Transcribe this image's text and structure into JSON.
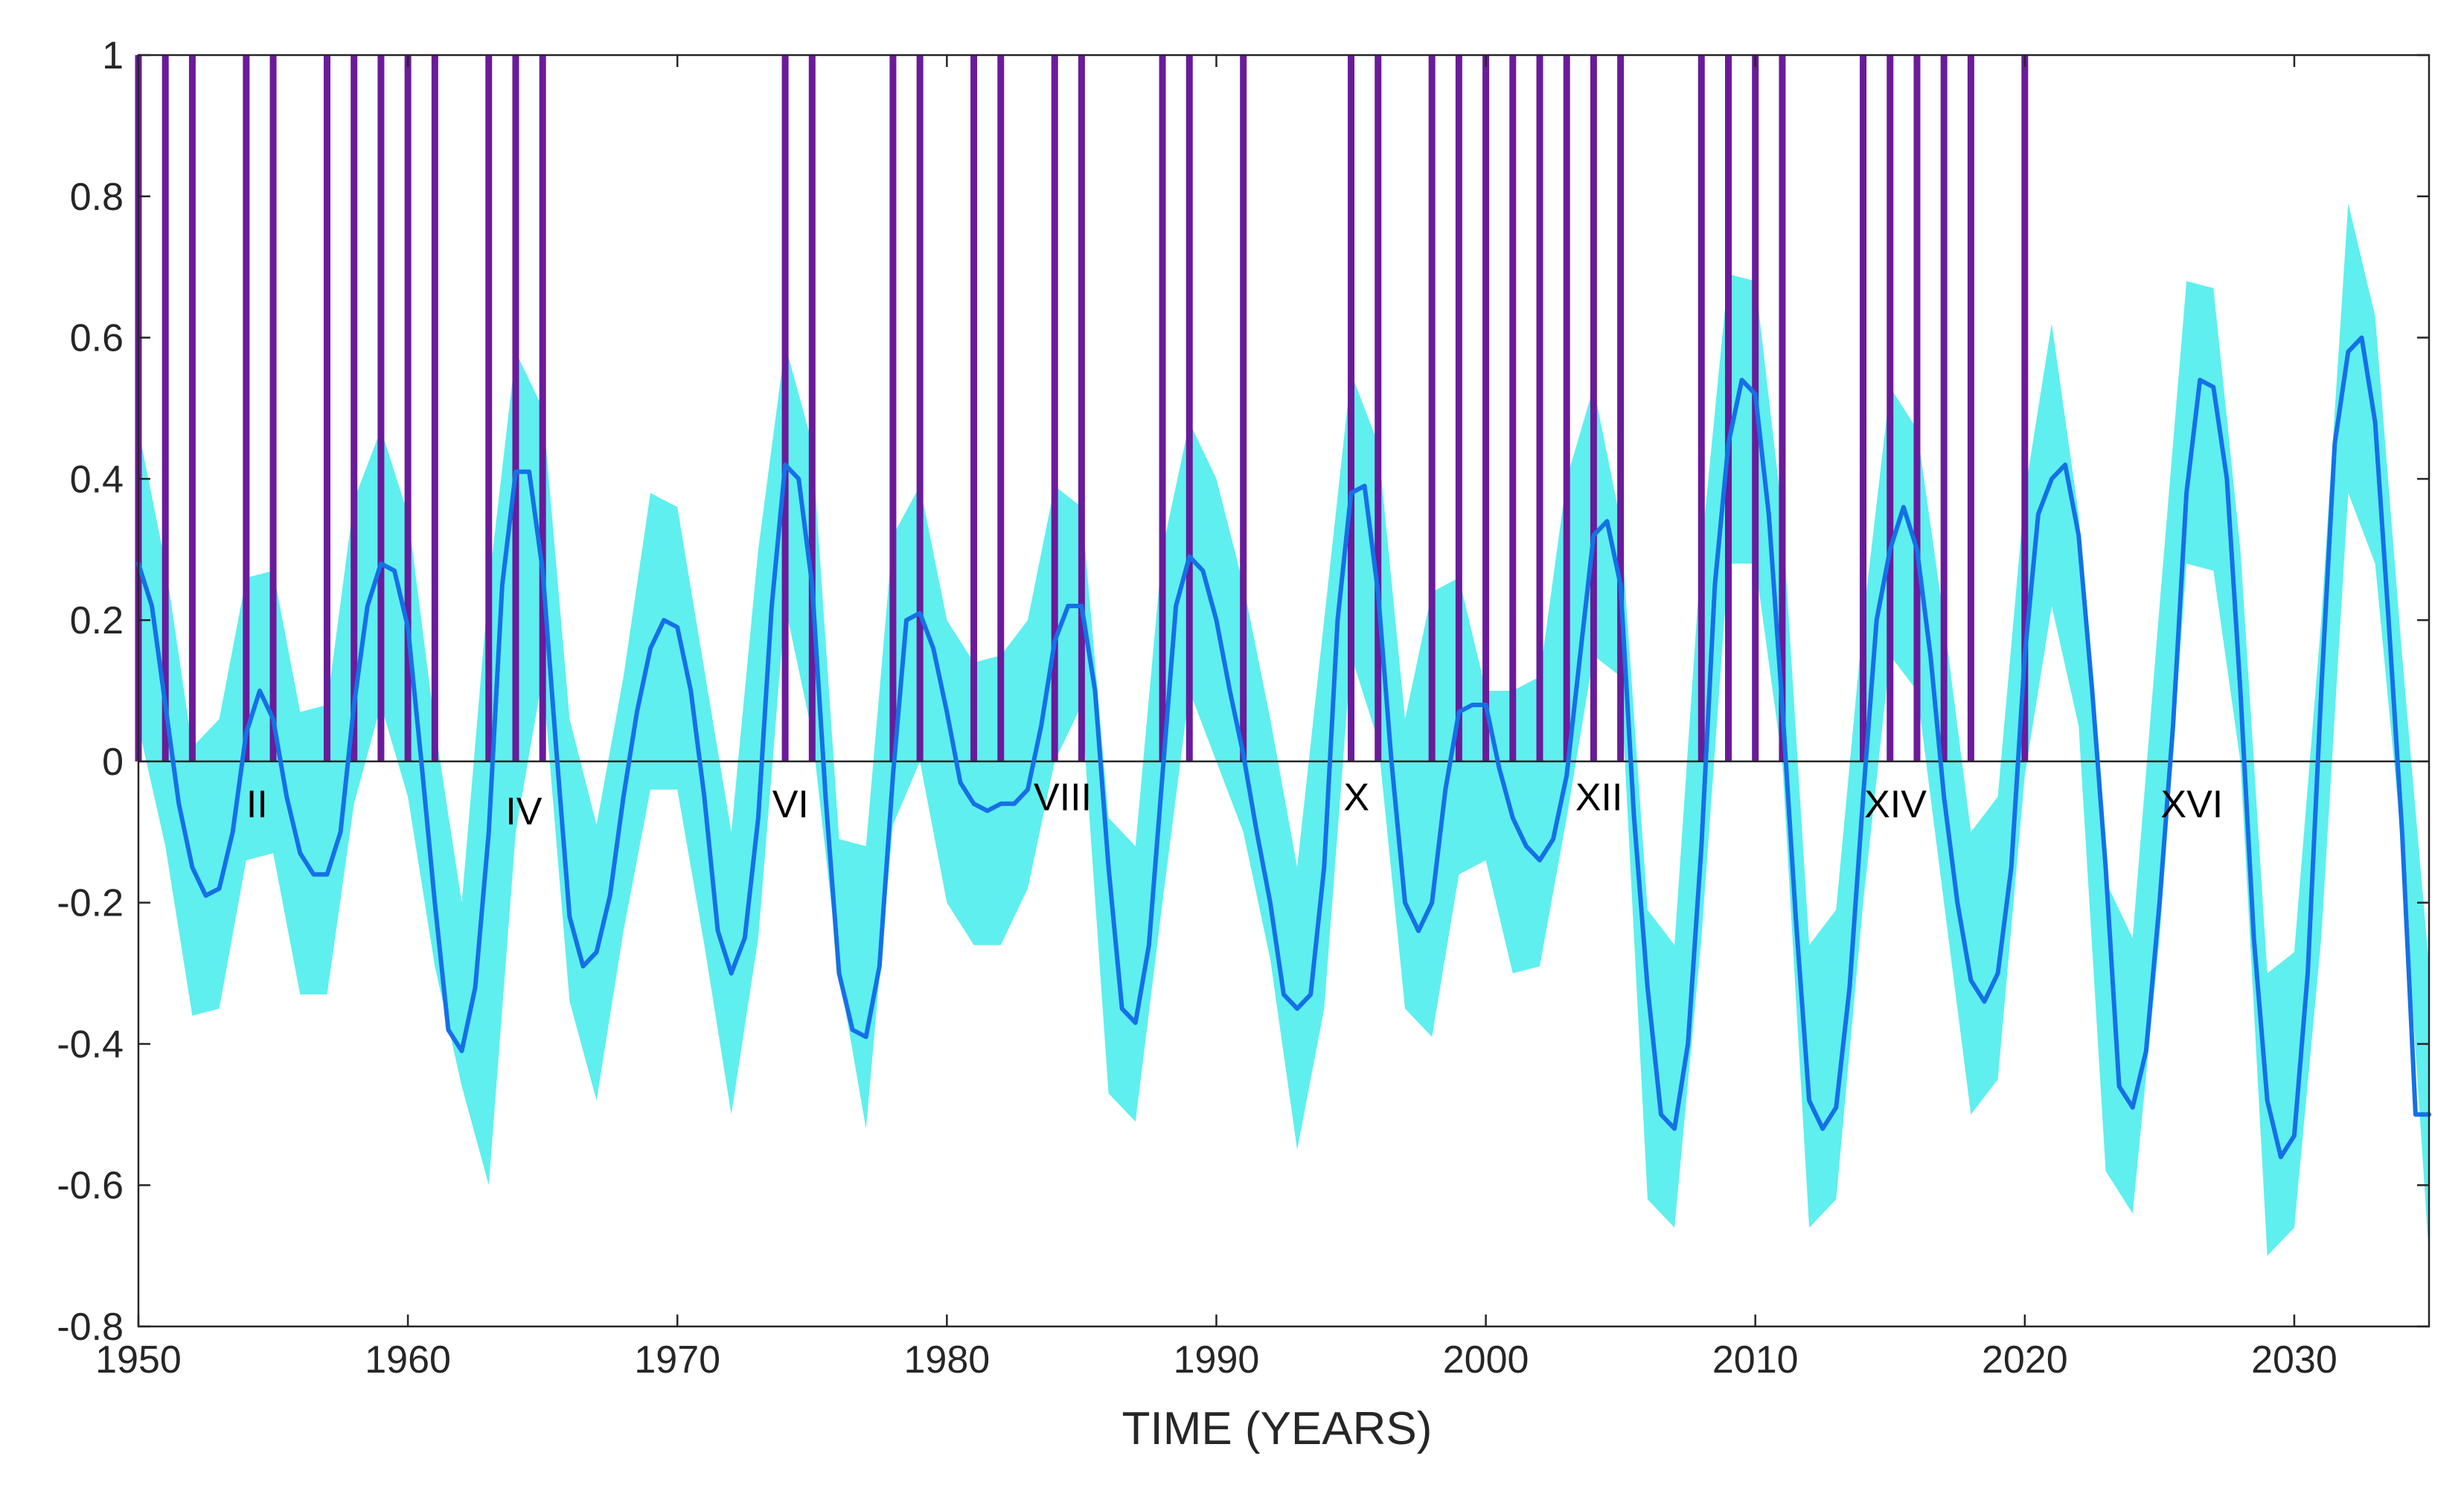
{
  "chart_data": {
    "type": "line",
    "title": "",
    "xlabel": "TIME (YEARS)",
    "ylabel": "",
    "xlim": [
      1950,
      2035
    ],
    "ylim": [
      -0.8,
      1
    ],
    "grid": false,
    "x_ticks": [
      1950,
      1960,
      1970,
      1980,
      1990,
      2000,
      2010,
      2020,
      2030
    ],
    "y_ticks": [
      -0.8,
      -0.6,
      -0.4,
      -0.2,
      0,
      0.2,
      0.4,
      0.6,
      0.8,
      1
    ],
    "y_tick_labels": [
      "-0.8",
      "-0.6",
      "-0.4",
      "-0.2",
      "0",
      "0.2",
      "0.4",
      "0.6",
      "0.8",
      "1"
    ],
    "colors": {
      "band": "#5FEFEF",
      "mean_line": "#1570E6",
      "events": "#6A1B9A",
      "axis": "#262626",
      "zero_line": "#262626"
    },
    "event_years": [
      1950,
      1951,
      1952,
      1954,
      1955,
      1957,
      1958,
      1959,
      1960,
      1961,
      1963,
      1964,
      1965,
      1974,
      1975,
      1978,
      1979,
      1981,
      1982,
      1984,
      1985,
      1988,
      1989,
      1991,
      1995,
      1996,
      1998,
      1999,
      2000,
      2001,
      2002,
      2003,
      2004,
      2005,
      2008,
      2009,
      2010,
      2011,
      2014,
      2015,
      2016,
      2017,
      2018,
      2020
    ],
    "event_height": 1,
    "series": [
      {
        "name": "mean",
        "x": [
          1950,
          1950.5,
          1951,
          1951.5,
          1952,
          1952.5,
          1953,
          1953.5,
          1954,
          1954.5,
          1955,
          1955.5,
          1956,
          1956.5,
          1957,
          1957.5,
          1958,
          1958.5,
          1959,
          1959.5,
          1960,
          1960.5,
          1961,
          1961.5,
          1962,
          1962.5,
          1963,
          1963.5,
          1964,
          1964.5,
          1965,
          1965.5,
          1966,
          1966.5,
          1967,
          1967.5,
          1968,
          1968.5,
          1969,
          1969.5,
          1970,
          1970.5,
          1971,
          1971.5,
          1972,
          1972.5,
          1973,
          1973.5,
          1974,
          1974.5,
          1975,
          1975.5,
          1976,
          1976.5,
          1977,
          1977.5,
          1978,
          1978.5,
          1979,
          1979.5,
          1980,
          1980.5,
          1981,
          1981.5,
          1982,
          1982.5,
          1983,
          1983.5,
          1984,
          1984.5,
          1985,
          1985.5,
          1986,
          1986.5,
          1987,
          1987.5,
          1988,
          1988.5,
          1989,
          1989.5,
          1990,
          1990.5,
          1991,
          1991.5,
          1992,
          1992.5,
          1993,
          1993.5,
          1994,
          1994.5,
          1995,
          1995.5,
          1996,
          1996.5,
          1997,
          1997.5,
          1998,
          1998.5,
          1999,
          1999.5,
          2000,
          2000.5,
          2001,
          2001.5,
          2002,
          2002.5,
          2003,
          2003.5,
          2004,
          2004.5,
          2005,
          2005.5,
          2006,
          2006.5,
          2007,
          2007.5,
          2008,
          2008.5,
          2009,
          2009.5,
          2010,
          2010.5,
          2011,
          2011.5,
          2012,
          2012.5,
          2013,
          2013.5,
          2014,
          2014.5,
          2015,
          2015.5,
          2016,
          2016.5,
          2017,
          2017.5,
          2018,
          2018.5,
          2019,
          2019.5,
          2020,
          2020.5,
          2021,
          2021.5,
          2022,
          2022.5,
          2023,
          2023.5,
          2024,
          2024.5,
          2025,
          2025.5,
          2026,
          2026.5,
          2027,
          2027.5,
          2028,
          2028.5,
          2029,
          2029.5,
          2030,
          2030.5,
          2031,
          2031.5,
          2032,
          2032.5,
          2033,
          2033.5,
          2034,
          2034.5,
          2035
        ],
        "values": [
          0.28,
          0.22,
          0.08,
          -0.06,
          -0.15,
          -0.19,
          -0.18,
          -0.1,
          0.04,
          0.1,
          0.06,
          -0.05,
          -0.13,
          -0.16,
          -0.16,
          -0.1,
          0.08,
          0.22,
          0.28,
          0.27,
          0.19,
          0.0,
          -0.2,
          -0.38,
          -0.41,
          -0.32,
          -0.1,
          0.25,
          0.41,
          0.41,
          0.27,
          0.02,
          -0.22,
          -0.29,
          -0.27,
          -0.19,
          -0.05,
          0.07,
          0.16,
          0.2,
          0.19,
          0.1,
          -0.05,
          -0.24,
          -0.3,
          -0.25,
          -0.08,
          0.22,
          0.42,
          0.4,
          0.25,
          -0.05,
          -0.3,
          -0.38,
          -0.39,
          -0.29,
          -0.02,
          0.2,
          0.21,
          0.16,
          0.07,
          -0.03,
          -0.06,
          -0.07,
          -0.06,
          -0.06,
          -0.04,
          0.05,
          0.17,
          0.22,
          0.22,
          0.1,
          -0.15,
          -0.35,
          -0.37,
          -0.26,
          -0.02,
          0.22,
          0.29,
          0.27,
          0.2,
          0.1,
          0.01,
          -0.1,
          -0.2,
          -0.33,
          -0.35,
          -0.33,
          -0.15,
          0.2,
          0.38,
          0.39,
          0.24,
          0.0,
          -0.2,
          -0.24,
          -0.2,
          -0.04,
          0.07,
          0.08,
          0.08,
          -0.01,
          -0.08,
          -0.12,
          -0.14,
          -0.11,
          -0.02,
          0.15,
          0.32,
          0.34,
          0.25,
          -0.08,
          -0.32,
          -0.5,
          -0.52,
          -0.4,
          -0.12,
          0.25,
          0.45,
          0.54,
          0.52,
          0.35,
          0.08,
          -0.22,
          -0.48,
          -0.52,
          -0.49,
          -0.32,
          -0.05,
          0.2,
          0.3,
          0.36,
          0.3,
          0.15,
          -0.05,
          -0.2,
          -0.31,
          -0.34,
          -0.3,
          -0.15,
          0.15,
          0.35,
          0.4,
          0.42,
          0.32,
          0.1,
          -0.15,
          -0.46,
          -0.49,
          -0.41,
          -0.2,
          0.05,
          0.38,
          0.54,
          0.53,
          0.4,
          0.1,
          -0.25,
          -0.48,
          -0.56,
          -0.53,
          -0.3,
          0.1,
          0.45,
          0.58,
          0.6,
          0.48,
          0.2,
          -0.1,
          -0.5,
          -0.5
        ]
      },
      {
        "name": "upper",
        "x": [
          1950,
          1951,
          1952,
          1953,
          1954,
          1955,
          1956,
          1957,
          1958,
          1959,
          1960,
          1961,
          1962,
          1963,
          1964,
          1965,
          1966,
          1967,
          1968,
          1969,
          1970,
          1971,
          1972,
          1973,
          1974,
          1975,
          1976,
          1977,
          1978,
          1979,
          1980,
          1981,
          1982,
          1983,
          1984,
          1985,
          1986,
          1987,
          1988,
          1989,
          1990,
          1991,
          1992,
          1993,
          1994,
          1995,
          1996,
          1997,
          1998,
          1999,
          2000,
          2001,
          2002,
          2003,
          2004,
          2005,
          2006,
          2007,
          2008,
          2009,
          2010,
          2011,
          2012,
          2013,
          2014,
          2015,
          2016,
          2017,
          2018,
          2019,
          2020,
          2021,
          2022,
          2023,
          2024,
          2025,
          2026,
          2027,
          2028,
          2029,
          2030,
          2031,
          2032,
          2033,
          2034,
          2035
        ],
        "values": [
          0.47,
          0.28,
          0.02,
          0.06,
          0.26,
          0.27,
          0.07,
          0.08,
          0.37,
          0.47,
          0.35,
          0.05,
          -0.2,
          0.25,
          0.58,
          0.5,
          0.06,
          -0.09,
          0.12,
          0.38,
          0.36,
          0.13,
          -0.1,
          0.3,
          0.59,
          0.45,
          -0.11,
          -0.12,
          0.32,
          0.39,
          0.2,
          0.14,
          0.15,
          0.2,
          0.39,
          0.36,
          -0.08,
          -0.12,
          0.3,
          0.48,
          0.4,
          0.25,
          0.06,
          -0.15,
          0.2,
          0.55,
          0.45,
          0.06,
          0.24,
          0.26,
          0.1,
          0.1,
          0.12,
          0.4,
          0.53,
          0.34,
          -0.21,
          -0.26,
          0.3,
          0.69,
          0.68,
          0.35,
          -0.26,
          -0.21,
          0.2,
          0.53,
          0.47,
          0.2,
          -0.1,
          -0.05,
          0.38,
          0.62,
          0.35,
          -0.17,
          -0.25,
          0.22,
          0.68,
          0.67,
          0.3,
          -0.3,
          -0.27,
          0.2,
          0.79,
          0.63,
          0.15,
          -0.29
        ]
      },
      {
        "name": "lower",
        "x": [
          1950,
          1951,
          1952,
          1953,
          1954,
          1955,
          1956,
          1957,
          1958,
          1959,
          1960,
          1961,
          1962,
          1963,
          1964,
          1965,
          1966,
          1967,
          1968,
          1969,
          1970,
          1971,
          1972,
          1973,
          1974,
          1975,
          1976,
          1977,
          1978,
          1979,
          1980,
          1981,
          1982,
          1983,
          1984,
          1985,
          1986,
          1987,
          1988,
          1989,
          1990,
          1991,
          1992,
          1993,
          1994,
          1995,
          1996,
          1997,
          1998,
          1999,
          2000,
          2001,
          2002,
          2003,
          2004,
          2005,
          2006,
          2007,
          2008,
          2009,
          2010,
          2011,
          2012,
          2013,
          2014,
          2015,
          2016,
          2017,
          2018,
          2019,
          2020,
          2021,
          2022,
          2023,
          2024,
          2025,
          2026,
          2027,
          2028,
          2029,
          2030,
          2031,
          2032,
          2033,
          2034,
          2035
        ],
        "values": [
          0.05,
          -0.12,
          -0.36,
          -0.35,
          -0.14,
          -0.13,
          -0.33,
          -0.33,
          -0.06,
          0.08,
          -0.05,
          -0.29,
          -0.46,
          -0.6,
          -0.1,
          0.12,
          -0.34,
          -0.48,
          -0.24,
          -0.04,
          -0.04,
          -0.26,
          -0.5,
          -0.25,
          0.22,
          0.04,
          -0.3,
          -0.52,
          -0.09,
          0.0,
          -0.2,
          -0.26,
          -0.26,
          -0.18,
          0.0,
          0.08,
          -0.47,
          -0.51,
          -0.2,
          0.1,
          0.0,
          -0.1,
          -0.28,
          -0.55,
          -0.35,
          0.15,
          0.03,
          -0.35,
          -0.39,
          -0.16,
          -0.14,
          -0.3,
          -0.29,
          -0.08,
          0.15,
          0.12,
          -0.62,
          -0.66,
          -0.25,
          0.28,
          0.28,
          0.0,
          -0.66,
          -0.62,
          -0.2,
          0.15,
          0.1,
          -0.2,
          -0.5,
          -0.45,
          -0.02,
          0.22,
          0.05,
          -0.58,
          -0.64,
          -0.25,
          0.28,
          0.27,
          0.0,
          -0.7,
          -0.66,
          -0.25,
          0.38,
          0.28,
          -0.12,
          -0.7
        ]
      }
    ],
    "annotations": [
      {
        "text": "II",
        "x": 1954.4,
        "y": -0.06
      },
      {
        "text": "IV",
        "x": 1964.3,
        "y": -0.07
      },
      {
        "text": "VI",
        "x": 1974.2,
        "y": -0.06
      },
      {
        "text": "VIII",
        "x": 1984.3,
        "y": -0.05
      },
      {
        "text": "X",
        "x": 1995.2,
        "y": -0.05
      },
      {
        "text": "XII",
        "x": 2004.2,
        "y": -0.05
      },
      {
        "text": "XIV",
        "x": 2015.2,
        "y": -0.06
      },
      {
        "text": "XVI",
        "x": 2026.2,
        "y": -0.06
      }
    ]
  }
}
